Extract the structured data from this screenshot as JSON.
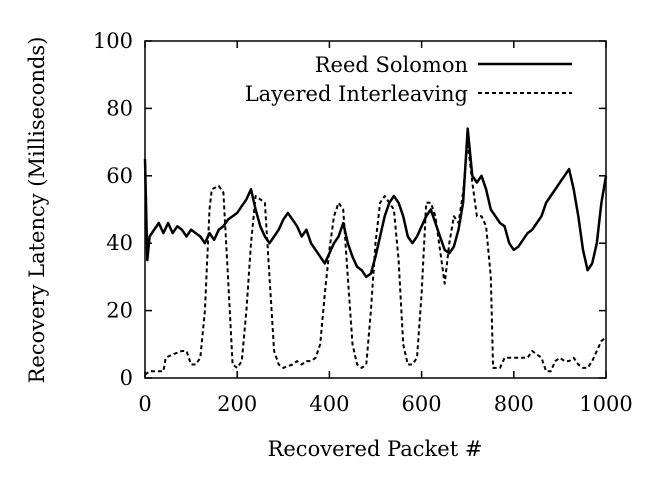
{
  "chart_data": {
    "type": "line",
    "xlabel": "Recovered Packet #",
    "ylabel": "Recovery Latency (Milliseconds)",
    "xlim": [
      0,
      1000
    ],
    "ylim": [
      0,
      100
    ],
    "x_ticks": [
      0,
      200,
      400,
      600,
      800,
      1000
    ],
    "y_ticks": [
      0,
      20,
      40,
      60,
      80,
      100
    ],
    "grid": false,
    "legend_position": "top-right",
    "series": [
      {
        "name": "Reed Solomon",
        "style": "solid",
        "color": "#000000",
        "points": [
          [
            0,
            65
          ],
          [
            5,
            35
          ],
          [
            10,
            42
          ],
          [
            20,
            44
          ],
          [
            30,
            46
          ],
          [
            40,
            43
          ],
          [
            50,
            46
          ],
          [
            60,
            43
          ],
          [
            70,
            45
          ],
          [
            80,
            44
          ],
          [
            90,
            42
          ],
          [
            100,
            44
          ],
          [
            110,
            43
          ],
          [
            120,
            42
          ],
          [
            130,
            40
          ],
          [
            140,
            43
          ],
          [
            150,
            41
          ],
          [
            160,
            44
          ],
          [
            170,
            45
          ],
          [
            180,
            47
          ],
          [
            190,
            48
          ],
          [
            200,
            49
          ],
          [
            210,
            51
          ],
          [
            220,
            53
          ],
          [
            230,
            56
          ],
          [
            240,
            50
          ],
          [
            250,
            45
          ],
          [
            260,
            42
          ],
          [
            270,
            40
          ],
          [
            280,
            42
          ],
          [
            290,
            44
          ],
          [
            300,
            47
          ],
          [
            310,
            49
          ],
          [
            320,
            47
          ],
          [
            330,
            45
          ],
          [
            340,
            42
          ],
          [
            350,
            44
          ],
          [
            360,
            40
          ],
          [
            370,
            38
          ],
          [
            380,
            36
          ],
          [
            390,
            34
          ],
          [
            400,
            37
          ],
          [
            410,
            40
          ],
          [
            420,
            42
          ],
          [
            430,
            46
          ],
          [
            440,
            40
          ],
          [
            450,
            36
          ],
          [
            460,
            33
          ],
          [
            470,
            32
          ],
          [
            480,
            30
          ],
          [
            490,
            31
          ],
          [
            500,
            36
          ],
          [
            510,
            42
          ],
          [
            520,
            48
          ],
          [
            530,
            52
          ],
          [
            540,
            54
          ],
          [
            550,
            52
          ],
          [
            560,
            48
          ],
          [
            570,
            42
          ],
          [
            580,
            40
          ],
          [
            590,
            42
          ],
          [
            600,
            45
          ],
          [
            610,
            48
          ],
          [
            620,
            50
          ],
          [
            630,
            46
          ],
          [
            640,
            42
          ],
          [
            650,
            38
          ],
          [
            660,
            37
          ],
          [
            670,
            39
          ],
          [
            680,
            44
          ],
          [
            690,
            52
          ],
          [
            700,
            74
          ],
          [
            710,
            60
          ],
          [
            720,
            58
          ],
          [
            730,
            60
          ],
          [
            740,
            56
          ],
          [
            750,
            50
          ],
          [
            760,
            48
          ],
          [
            770,
            46
          ],
          [
            780,
            45
          ],
          [
            790,
            40
          ],
          [
            800,
            38
          ],
          [
            810,
            39
          ],
          [
            820,
            41
          ],
          [
            830,
            43
          ],
          [
            840,
            44
          ],
          [
            850,
            46
          ],
          [
            860,
            48
          ],
          [
            870,
            52
          ],
          [
            880,
            54
          ],
          [
            890,
            56
          ],
          [
            900,
            58
          ],
          [
            910,
            60
          ],
          [
            920,
            62
          ],
          [
            930,
            56
          ],
          [
            940,
            48
          ],
          [
            950,
            38
          ],
          [
            960,
            32
          ],
          [
            970,
            34
          ],
          [
            980,
            40
          ],
          [
            990,
            52
          ],
          [
            1000,
            60
          ]
        ]
      },
      {
        "name": "Layered Interleaving",
        "style": "dashed",
        "color": "#000000",
        "points": [
          [
            0,
            1
          ],
          [
            10,
            2
          ],
          [
            20,
            2
          ],
          [
            40,
            2
          ],
          [
            45,
            6
          ],
          [
            60,
            7
          ],
          [
            80,
            8
          ],
          [
            90,
            8
          ],
          [
            100,
            4
          ],
          [
            110,
            4
          ],
          [
            120,
            6
          ],
          [
            130,
            20
          ],
          [
            140,
            50
          ],
          [
            145,
            56
          ],
          [
            160,
            57
          ],
          [
            170,
            55
          ],
          [
            180,
            30
          ],
          [
            190,
            4
          ],
          [
            200,
            3
          ],
          [
            210,
            5
          ],
          [
            220,
            20
          ],
          [
            230,
            40
          ],
          [
            240,
            54
          ],
          [
            250,
            53
          ],
          [
            260,
            52
          ],
          [
            270,
            30
          ],
          [
            280,
            8
          ],
          [
            290,
            4
          ],
          [
            300,
            3
          ],
          [
            320,
            4
          ],
          [
            330,
            5
          ],
          [
            340,
            4
          ],
          [
            350,
            5
          ],
          [
            360,
            5
          ],
          [
            370,
            6
          ],
          [
            380,
            10
          ],
          [
            390,
            25
          ],
          [
            400,
            38
          ],
          [
            410,
            48
          ],
          [
            420,
            52
          ],
          [
            430,
            50
          ],
          [
            440,
            30
          ],
          [
            450,
            10
          ],
          [
            460,
            4
          ],
          [
            470,
            3
          ],
          [
            480,
            4
          ],
          [
            490,
            20
          ],
          [
            500,
            40
          ],
          [
            510,
            52
          ],
          [
            520,
            54
          ],
          [
            530,
            52
          ],
          [
            540,
            50
          ],
          [
            550,
            35
          ],
          [
            560,
            10
          ],
          [
            570,
            4
          ],
          [
            580,
            4
          ],
          [
            590,
            6
          ],
          [
            600,
            25
          ],
          [
            610,
            52
          ],
          [
            620,
            52
          ],
          [
            630,
            48
          ],
          [
            640,
            38
          ],
          [
            650,
            28
          ],
          [
            660,
            40
          ],
          [
            670,
            48
          ],
          [
            680,
            46
          ],
          [
            690,
            55
          ],
          [
            700,
            70
          ],
          [
            710,
            58
          ],
          [
            720,
            48
          ],
          [
            730,
            48
          ],
          [
            740,
            45
          ],
          [
            750,
            30
          ],
          [
            755,
            3
          ],
          [
            770,
            3
          ],
          [
            780,
            6
          ],
          [
            800,
            6
          ],
          [
            820,
            6
          ],
          [
            830,
            6
          ],
          [
            840,
            8
          ],
          [
            850,
            7
          ],
          [
            860,
            6
          ],
          [
            870,
            2
          ],
          [
            880,
            2
          ],
          [
            890,
            5
          ],
          [
            900,
            6
          ],
          [
            910,
            5
          ],
          [
            920,
            5
          ],
          [
            930,
            6
          ],
          [
            940,
            4
          ],
          [
            950,
            3
          ],
          [
            960,
            3
          ],
          [
            970,
            5
          ],
          [
            980,
            8
          ],
          [
            990,
            11
          ],
          [
            1000,
            12
          ]
        ]
      }
    ]
  }
}
